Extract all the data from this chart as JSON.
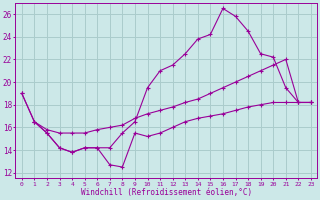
{
  "xlabel": "Windchill (Refroidissement éolien,°C)",
  "background_color": "#cce8e8",
  "grid_color": "#aacccc",
  "line_color": "#990099",
  "x_ticks": [
    0,
    1,
    2,
    3,
    4,
    5,
    6,
    7,
    8,
    9,
    10,
    11,
    12,
    13,
    14,
    15,
    16,
    17,
    18,
    19,
    20,
    21,
    22,
    23
  ],
  "xlim": [
    -0.5,
    23.5
  ],
  "ylim": [
    11.5,
    27
  ],
  "y_ticks": [
    12,
    14,
    16,
    18,
    20,
    22,
    24,
    26
  ],
  "line1_x": [
    0,
    1,
    2,
    3,
    4,
    5,
    6,
    7,
    8,
    9,
    10,
    11,
    12,
    13,
    14,
    15,
    16,
    17,
    18,
    19,
    20,
    21,
    22,
    23
  ],
  "line1_y": [
    19.0,
    16.5,
    15.5,
    14.2,
    13.8,
    14.2,
    14.2,
    12.7,
    12.5,
    15.5,
    15.2,
    15.5,
    16.0,
    16.5,
    16.8,
    17.0,
    17.2,
    17.5,
    17.8,
    18.0,
    18.2,
    18.2,
    18.2,
    18.2
  ],
  "line2_x": [
    0,
    1,
    2,
    3,
    4,
    5,
    6,
    7,
    8,
    9,
    10,
    11,
    12,
    13,
    14,
    15,
    16,
    17,
    18,
    19,
    20,
    21,
    22,
    23
  ],
  "line2_y": [
    19.0,
    16.5,
    15.5,
    14.2,
    13.8,
    14.2,
    14.2,
    14.2,
    15.5,
    16.5,
    19.5,
    21.0,
    21.5,
    22.5,
    23.8,
    24.2,
    26.5,
    25.8,
    24.5,
    22.5,
    22.2,
    19.5,
    18.2,
    18.2
  ],
  "line3_x": [
    1,
    2,
    3,
    4,
    5,
    6,
    7,
    8,
    9,
    10,
    11,
    12,
    13,
    14,
    15,
    16,
    17,
    18,
    19,
    20,
    21,
    22,
    23
  ],
  "line3_y": [
    16.5,
    15.8,
    15.5,
    15.5,
    15.5,
    15.8,
    16.0,
    16.2,
    16.8,
    17.2,
    17.5,
    17.8,
    18.2,
    18.5,
    19.0,
    19.5,
    20.0,
    20.5,
    21.0,
    21.5,
    22.0,
    18.2,
    18.2
  ]
}
